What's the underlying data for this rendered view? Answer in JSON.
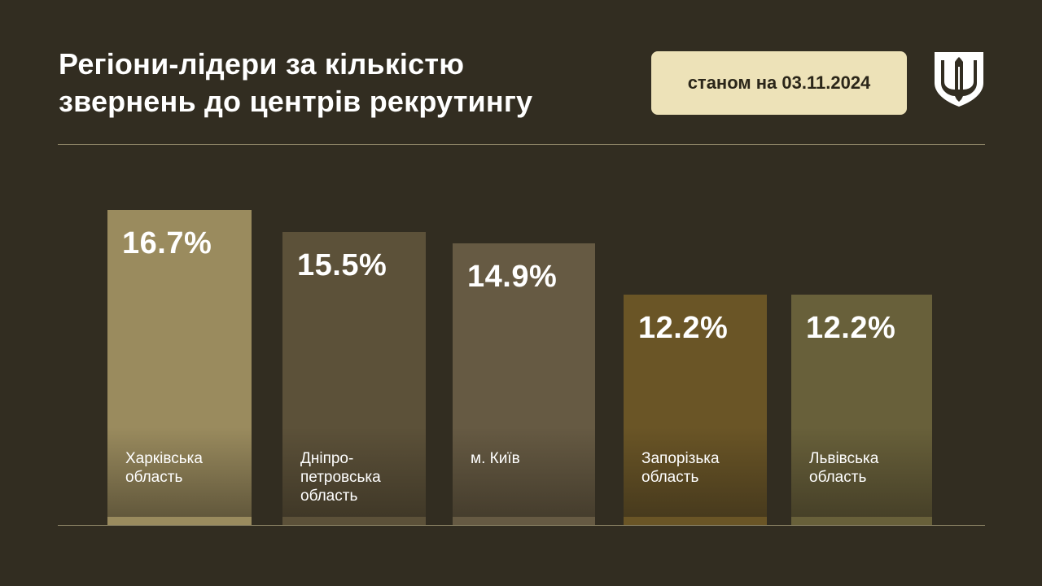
{
  "header": {
    "title_line1": "Регіони-лідери за кількістю",
    "title_line2": "звернень до центрів рекрутингу",
    "date_badge": "станом на 03.11.2024",
    "emblem_icon": "trident-shield-icon"
  },
  "colors": {
    "background": "#322d21",
    "badge": "#ede2b8",
    "rule": "#8d8466"
  },
  "chart_data": {
    "type": "bar",
    "categories": [
      "Харківська\nобласть",
      "Дніпро-\nпетровська\nобласть",
      "м. Київ",
      "Запорізька\nобласть",
      "Львівська\nобласть"
    ],
    "values": [
      16.7,
      15.5,
      14.9,
      12.2,
      12.2
    ],
    "value_labels": [
      "16.7%",
      "15.5%",
      "14.9%",
      "12.2%",
      "12.2%"
    ],
    "bar_colors": [
      "#9a8b5e",
      "#5c5139",
      "#665a43",
      "#6a5526",
      "#68603a"
    ],
    "unit": "%",
    "title": "Регіони-лідери за кількістю звернень до центрів рекрутингу",
    "ylim": [
      0,
      18
    ],
    "grid": false,
    "legend": "none"
  }
}
